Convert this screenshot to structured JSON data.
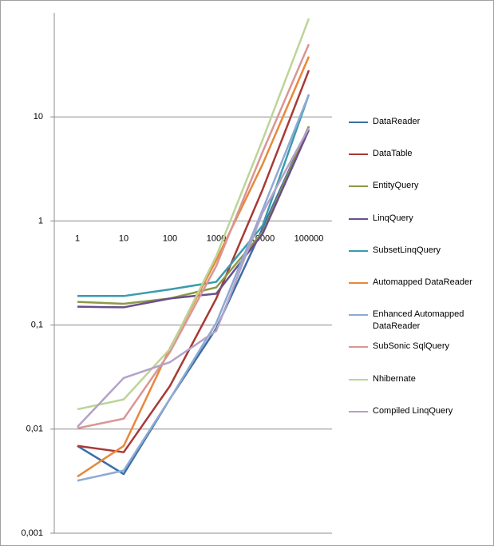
{
  "chart_data": {
    "type": "line",
    "categories": [
      "1",
      "10",
      "100",
      "1000",
      "10000",
      "100000"
    ],
    "ylim": [
      0.001,
      100
    ],
    "log_y": true,
    "grid": true,
    "legend": "right",
    "yticks": [
      {
        "value": 0.001,
        "label": "0,001"
      },
      {
        "value": 0.01,
        "label": "0,01"
      },
      {
        "value": 0.1,
        "label": "0,1"
      },
      1,
      10
    ],
    "series": [
      {
        "name": "DataReader",
        "color": "#3a6ea5",
        "values": [
          0.0069,
          0.0037,
          0.0196,
          0.093,
          0.85,
          8.1
        ]
      },
      {
        "name": "DataTable",
        "color": "#a83a36",
        "values": [
          0.0069,
          0.006,
          0.026,
          0.18,
          2.0,
          28
        ]
      },
      {
        "name": "EntityQuery",
        "color": "#8a9a45",
        "values": [
          0.167,
          0.16,
          0.18,
          0.23,
          0.78,
          8.1
        ]
      },
      {
        "name": "LinqQuery",
        "color": "#6b4e8c",
        "values": [
          0.15,
          0.148,
          0.18,
          0.2,
          0.75,
          7.5
        ]
      },
      {
        "name": "SubsetLinqQuery",
        "color": "#3b9bb0",
        "values": [
          0.19,
          0.19,
          0.22,
          0.26,
          0.9,
          16.4
        ]
      },
      {
        "name": "Automapped DataReader",
        "color": "#e8883a",
        "values": [
          0.0035,
          0.0069,
          0.06,
          0.42,
          3.5,
          38
        ]
      },
      {
        "name": "Enhanced Automapped DataReader",
        "color": "#8eaad3",
        "values": [
          0.0032,
          0.004,
          0.0196,
          0.105,
          1.28,
          16.4
        ]
      },
      {
        "name": "SubSonic SqlQuery",
        "color": "#d99694",
        "values": [
          0.0102,
          0.0126,
          0.055,
          0.37,
          4.6,
          50
        ]
      },
      {
        "name": "Nhibernate",
        "color": "#bcd597",
        "values": [
          0.0155,
          0.0193,
          0.059,
          0.46,
          6.0,
          88
        ]
      },
      {
        "name": "Compiled LinqQuery",
        "color": "#b3a2c7",
        "values": [
          0.0105,
          0.031,
          0.044,
          0.088,
          1.2,
          7.8
        ]
      }
    ]
  }
}
